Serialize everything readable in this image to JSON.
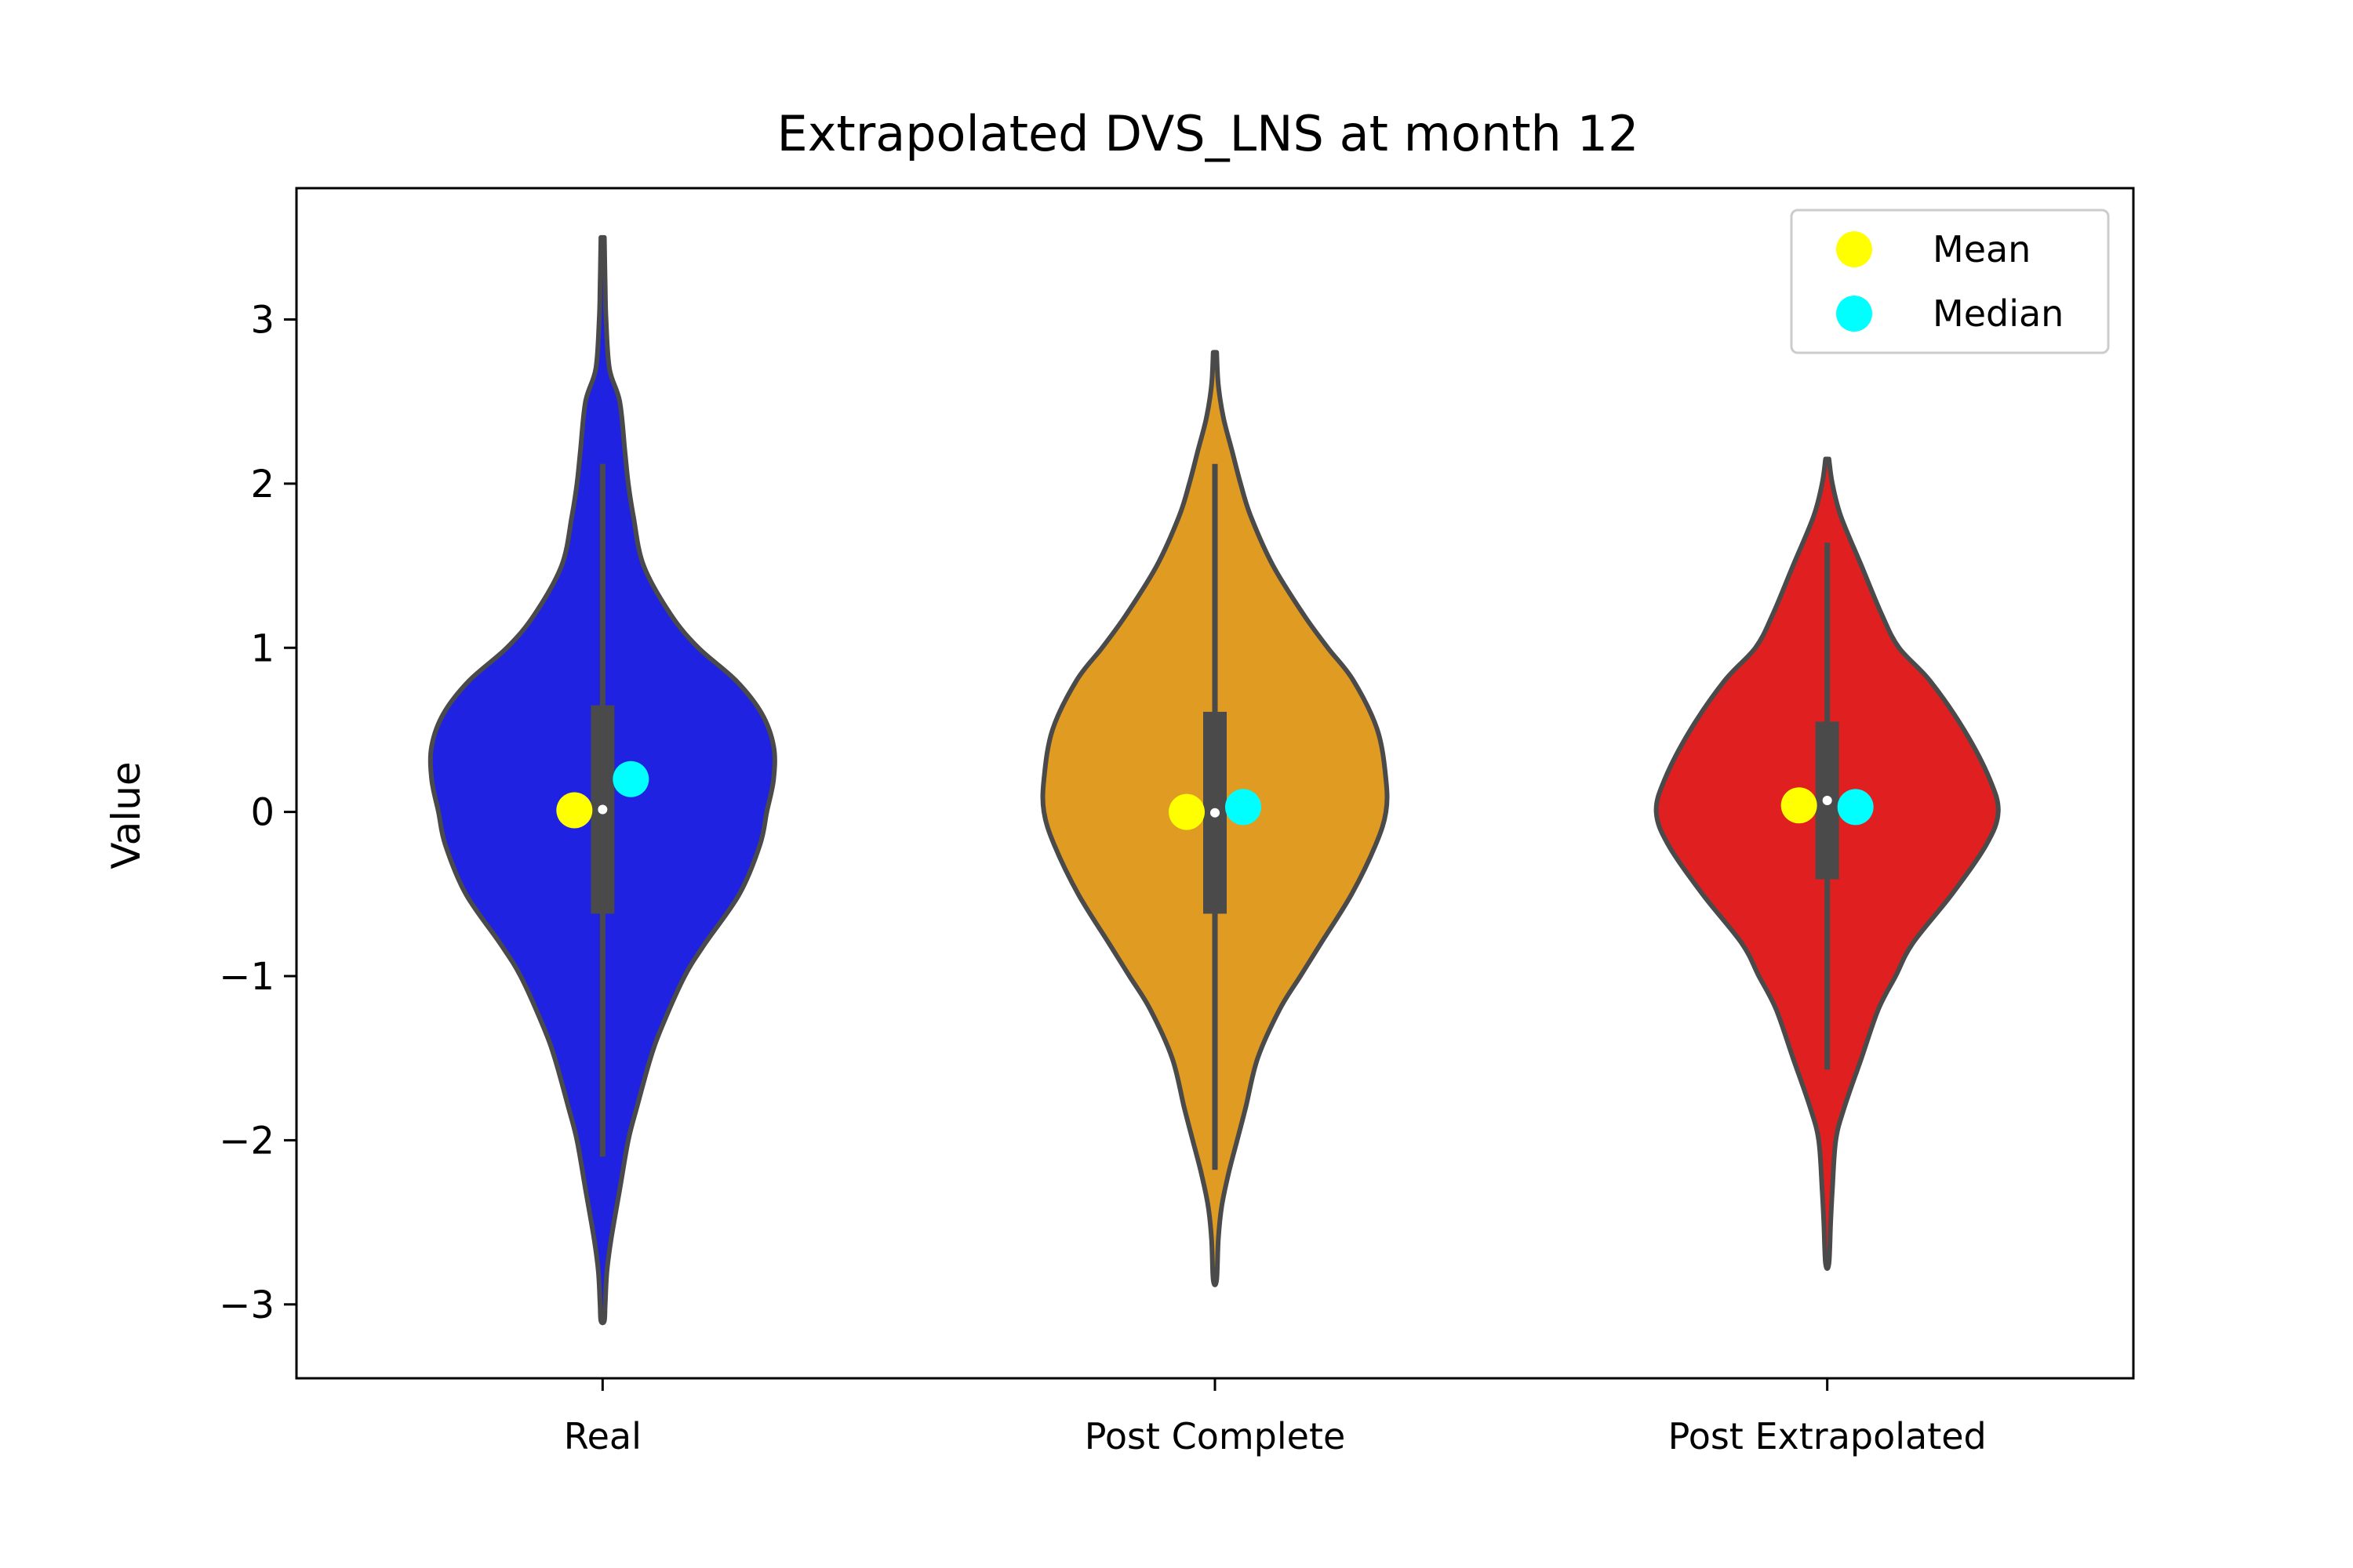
{
  "chart_data": {
    "type": "violin",
    "title": "Extrapolated DVS_LNS at month 12",
    "xlabel": "",
    "ylabel": "Value",
    "ylim": [
      -3.45,
      3.8
    ],
    "yticks": [
      -3,
      -2,
      -1,
      0,
      1,
      2,
      3
    ],
    "ytick_labels": [
      "−3",
      "−2",
      "−1",
      "0",
      "1",
      "2",
      "3"
    ],
    "grid": false,
    "legend": {
      "placement": "top-right",
      "entries": [
        {
          "label": "Mean",
          "color": "#ffff00"
        },
        {
          "label": "Median",
          "color": "#00ffff"
        }
      ]
    },
    "outline_color": "#4a4a4a",
    "categories": [
      "Real",
      "Post Complete",
      "Post Extrapolated"
    ],
    "series": [
      {
        "category": "Real",
        "color": "#1f22e0",
        "mean": 0.01,
        "median": 0.2,
        "box": {
          "q1": -0.62,
          "q3": 0.65,
          "whisker_low": -2.1,
          "whisker_high": 2.12
        },
        "range": [
          -3.1,
          3.5
        ],
        "density": [
          [
            3.5,
            0.01
          ],
          [
            3.2,
            0.015
          ],
          [
            3.0,
            0.02
          ],
          [
            2.7,
            0.04
          ],
          [
            2.5,
            0.1
          ],
          [
            2.2,
            0.13
          ],
          [
            2.0,
            0.15
          ],
          [
            1.8,
            0.18
          ],
          [
            1.5,
            0.24
          ],
          [
            1.2,
            0.4
          ],
          [
            1.0,
            0.56
          ],
          [
            0.8,
            0.78
          ],
          [
            0.6,
            0.93
          ],
          [
            0.4,
            1.0
          ],
          [
            0.2,
            1.0
          ],
          [
            0.0,
            0.96
          ],
          [
            -0.2,
            0.92
          ],
          [
            -0.5,
            0.8
          ],
          [
            -0.8,
            0.6
          ],
          [
            -1.0,
            0.48
          ],
          [
            -1.3,
            0.35
          ],
          [
            -1.5,
            0.28
          ],
          [
            -1.8,
            0.2
          ],
          [
            -2.0,
            0.15
          ],
          [
            -2.3,
            0.1
          ],
          [
            -2.6,
            0.05
          ],
          [
            -2.8,
            0.025
          ],
          [
            -3.0,
            0.015
          ],
          [
            -3.1,
            0.01
          ]
        ]
      },
      {
        "category": "Post Complete",
        "color": "#e09b22",
        "mean": 0.0,
        "median": 0.03,
        "box": {
          "q1": -0.62,
          "q3": 0.61,
          "whisker_low": -2.18,
          "whisker_high": 2.12
        },
        "range": [
          -2.85,
          2.8
        ],
        "density": [
          [
            2.8,
            0.01
          ],
          [
            2.6,
            0.02
          ],
          [
            2.4,
            0.05
          ],
          [
            2.2,
            0.1
          ],
          [
            2.0,
            0.15
          ],
          [
            1.8,
            0.21
          ],
          [
            1.5,
            0.34
          ],
          [
            1.2,
            0.52
          ],
          [
            1.0,
            0.66
          ],
          [
            0.8,
            0.81
          ],
          [
            0.5,
            0.95
          ],
          [
            0.2,
            1.0
          ],
          [
            0.0,
            1.0
          ],
          [
            -0.2,
            0.94
          ],
          [
            -0.5,
            0.8
          ],
          [
            -0.8,
            0.62
          ],
          [
            -1.0,
            0.5
          ],
          [
            -1.2,
            0.38
          ],
          [
            -1.5,
            0.25
          ],
          [
            -1.8,
            0.18
          ],
          [
            -2.0,
            0.13
          ],
          [
            -2.2,
            0.08
          ],
          [
            -2.4,
            0.04
          ],
          [
            -2.6,
            0.02
          ],
          [
            -2.85,
            0.01
          ]
        ]
      },
      {
        "category": "Post Extrapolated",
        "color": "#e02020",
        "mean": 0.04,
        "median": 0.03,
        "box": {
          "q1": -0.41,
          "q3": 0.55,
          "whisker_low": -1.57,
          "whisker_high": 1.64
        },
        "range": [
          -2.75,
          2.15
        ],
        "density": [
          [
            2.15,
            0.01
          ],
          [
            2.0,
            0.03
          ],
          [
            1.8,
            0.08
          ],
          [
            1.5,
            0.2
          ],
          [
            1.2,
            0.32
          ],
          [
            1.0,
            0.42
          ],
          [
            0.8,
            0.6
          ],
          [
            0.5,
            0.8
          ],
          [
            0.2,
            0.95
          ],
          [
            0.0,
            1.0
          ],
          [
            -0.2,
            0.93
          ],
          [
            -0.5,
            0.73
          ],
          [
            -0.8,
            0.5
          ],
          [
            -1.0,
            0.4
          ],
          [
            -1.2,
            0.3
          ],
          [
            -1.5,
            0.2
          ],
          [
            -1.8,
            0.1
          ],
          [
            -2.0,
            0.05
          ],
          [
            -2.3,
            0.03
          ],
          [
            -2.5,
            0.02
          ],
          [
            -2.75,
            0.01
          ]
        ]
      }
    ]
  }
}
